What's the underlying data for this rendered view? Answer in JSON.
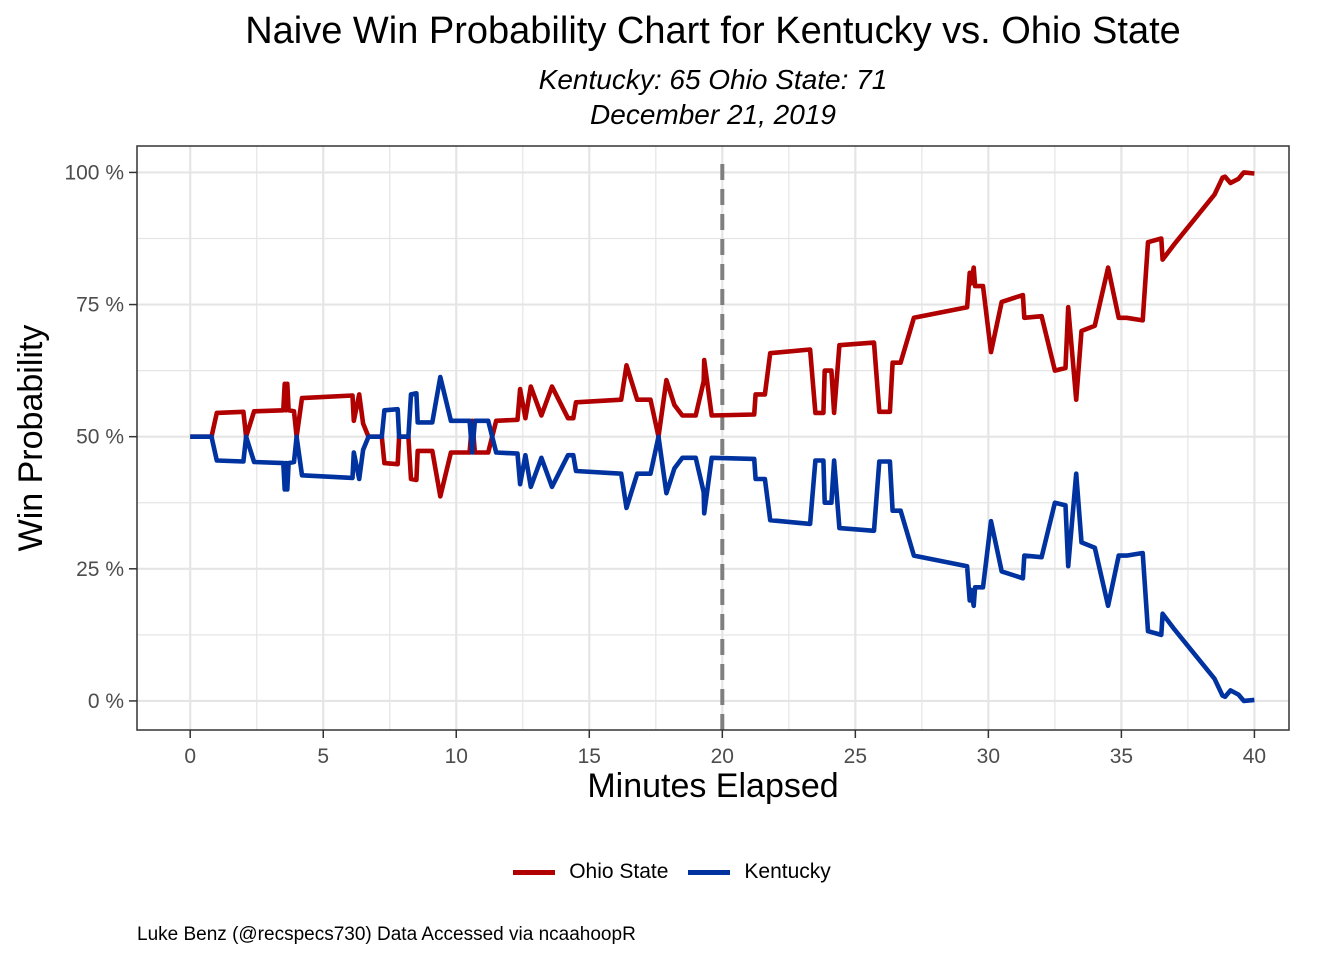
{
  "title": "Naive Win Probability Chart for Kentucky vs. Ohio State",
  "subtitle_line1": "Kentucky: 65  Ohio State: 71",
  "subtitle_line2": "December 21, 2019",
  "caption": "Luke Benz (@recspecs730) Data Accessed via ncaahoopR",
  "colors": {
    "ohio_state": "#b00000",
    "kentucky": "#0033a0",
    "halftime_line": "#7f7f7f",
    "grid": "#e5e5e5"
  },
  "chart_data": {
    "type": "line",
    "xlabel": "Minutes Elapsed",
    "ylabel": "Win Probability",
    "xlim": [
      -2,
      41.3
    ],
    "ylim": [
      -0.055,
      1.05
    ],
    "x_ticks": [
      0,
      5,
      10,
      15,
      20,
      25,
      30,
      35,
      40
    ],
    "x_tick_labels": [
      "0",
      "5",
      "10",
      "15",
      "20",
      "25",
      "30",
      "35",
      "40"
    ],
    "y_ticks": [
      0,
      0.25,
      0.5,
      0.75,
      1.0
    ],
    "y_tick_labels": [
      "0 %",
      "25 %",
      "50 %",
      "75 %",
      "100 %"
    ],
    "grid": true,
    "legend_position": "bottom",
    "reference_line": {
      "x": 20,
      "style": "dashed"
    },
    "series": [
      {
        "name": "Ohio State",
        "color": "#b00000",
        "points": [
          [
            0,
            0.5
          ],
          [
            0.8,
            0.5
          ],
          [
            1.0,
            0.545
          ],
          [
            2.0,
            0.547
          ],
          [
            2.1,
            0.5
          ],
          [
            2.4,
            0.548
          ],
          [
            3.5,
            0.55
          ],
          [
            3.55,
            0.6
          ],
          [
            3.6,
            0.55
          ],
          [
            3.65,
            0.6
          ],
          [
            3.7,
            0.55
          ],
          [
            3.9,
            0.548
          ],
          [
            4.0,
            0.5
          ],
          [
            4.2,
            0.573
          ],
          [
            6.1,
            0.578
          ],
          [
            6.15,
            0.53
          ],
          [
            6.35,
            0.58
          ],
          [
            6.5,
            0.525
          ],
          [
            6.7,
            0.5
          ],
          [
            7.2,
            0.5
          ],
          [
            7.3,
            0.45
          ],
          [
            7.8,
            0.448
          ],
          [
            7.85,
            0.5
          ],
          [
            8.2,
            0.5
          ],
          [
            8.3,
            0.42
          ],
          [
            8.5,
            0.418
          ],
          [
            8.55,
            0.473
          ],
          [
            9.1,
            0.473
          ],
          [
            9.4,
            0.387
          ],
          [
            9.8,
            0.47
          ],
          [
            10.5,
            0.47
          ],
          [
            10.6,
            0.53
          ],
          [
            10.7,
            0.47
          ],
          [
            11.2,
            0.47
          ],
          [
            11.5,
            0.53
          ],
          [
            12.3,
            0.532
          ],
          [
            12.4,
            0.59
          ],
          [
            12.6,
            0.535
          ],
          [
            12.8,
            0.595
          ],
          [
            13.2,
            0.54
          ],
          [
            13.6,
            0.595
          ],
          [
            14.2,
            0.535
          ],
          [
            14.4,
            0.535
          ],
          [
            14.5,
            0.565
          ],
          [
            16.2,
            0.57
          ],
          [
            16.4,
            0.635
          ],
          [
            16.8,
            0.57
          ],
          [
            17.3,
            0.57
          ],
          [
            17.6,
            0.5
          ],
          [
            17.9,
            0.607
          ],
          [
            18.2,
            0.56
          ],
          [
            18.5,
            0.54
          ],
          [
            19.0,
            0.54
          ],
          [
            19.3,
            0.605
          ],
          [
            19.32,
            0.645
          ],
          [
            19.6,
            0.54
          ],
          [
            21.2,
            0.542
          ],
          [
            21.25,
            0.58
          ],
          [
            21.6,
            0.58
          ],
          [
            21.8,
            0.658
          ],
          [
            23.3,
            0.665
          ],
          [
            23.5,
            0.545
          ],
          [
            23.8,
            0.545
          ],
          [
            23.85,
            0.625
          ],
          [
            24.1,
            0.625
          ],
          [
            24.2,
            0.545
          ],
          [
            24.4,
            0.673
          ],
          [
            25.7,
            0.678
          ],
          [
            25.9,
            0.547
          ],
          [
            26.3,
            0.547
          ],
          [
            26.4,
            0.64
          ],
          [
            26.7,
            0.64
          ],
          [
            27.2,
            0.725
          ],
          [
            29.2,
            0.745
          ],
          [
            29.3,
            0.81
          ],
          [
            29.35,
            0.79
          ],
          [
            29.45,
            0.82
          ],
          [
            29.5,
            0.785
          ],
          [
            29.8,
            0.785
          ],
          [
            30.1,
            0.66
          ],
          [
            30.5,
            0.755
          ],
          [
            31.3,
            0.768
          ],
          [
            31.35,
            0.725
          ],
          [
            32.0,
            0.728
          ],
          [
            32.5,
            0.625
          ],
          [
            32.9,
            0.63
          ],
          [
            33.0,
            0.745
          ],
          [
            33.3,
            0.57
          ],
          [
            33.5,
            0.7
          ],
          [
            34.0,
            0.71
          ],
          [
            34.5,
            0.82
          ],
          [
            34.9,
            0.725
          ],
          [
            35.2,
            0.725
          ],
          [
            35.8,
            0.72
          ],
          [
            36.0,
            0.868
          ],
          [
            36.5,
            0.875
          ],
          [
            36.55,
            0.835
          ],
          [
            37.0,
            0.865
          ],
          [
            38.5,
            0.958
          ],
          [
            38.8,
            0.99
          ],
          [
            38.9,
            0.992
          ],
          [
            39.1,
            0.98
          ],
          [
            39.4,
            0.988
          ],
          [
            39.6,
            1.0
          ],
          [
            40,
            0.998
          ]
        ]
      },
      {
        "name": "Kentucky",
        "color": "#0033a0",
        "points": [
          [
            0,
            0.5
          ],
          [
            0.8,
            0.5
          ],
          [
            1.0,
            0.455
          ],
          [
            2.0,
            0.453
          ],
          [
            2.1,
            0.5
          ],
          [
            2.4,
            0.452
          ],
          [
            3.5,
            0.45
          ],
          [
            3.55,
            0.4
          ],
          [
            3.6,
            0.45
          ],
          [
            3.65,
            0.4
          ],
          [
            3.7,
            0.45
          ],
          [
            3.9,
            0.452
          ],
          [
            4.0,
            0.5
          ],
          [
            4.2,
            0.427
          ],
          [
            6.1,
            0.422
          ],
          [
            6.15,
            0.47
          ],
          [
            6.35,
            0.42
          ],
          [
            6.5,
            0.475
          ],
          [
            6.7,
            0.5
          ],
          [
            7.2,
            0.5
          ],
          [
            7.3,
            0.55
          ],
          [
            7.8,
            0.552
          ],
          [
            7.85,
            0.5
          ],
          [
            8.2,
            0.5
          ],
          [
            8.3,
            0.58
          ],
          [
            8.5,
            0.582
          ],
          [
            8.55,
            0.527
          ],
          [
            9.1,
            0.527
          ],
          [
            9.4,
            0.613
          ],
          [
            9.8,
            0.53
          ],
          [
            10.5,
            0.53
          ],
          [
            10.6,
            0.47
          ],
          [
            10.7,
            0.53
          ],
          [
            11.2,
            0.53
          ],
          [
            11.5,
            0.47
          ],
          [
            12.3,
            0.468
          ],
          [
            12.4,
            0.41
          ],
          [
            12.6,
            0.465
          ],
          [
            12.8,
            0.405
          ],
          [
            13.2,
            0.46
          ],
          [
            13.6,
            0.405
          ],
          [
            14.2,
            0.465
          ],
          [
            14.4,
            0.465
          ],
          [
            14.5,
            0.435
          ],
          [
            16.2,
            0.43
          ],
          [
            16.4,
            0.365
          ],
          [
            16.8,
            0.43
          ],
          [
            17.3,
            0.43
          ],
          [
            17.6,
            0.5
          ],
          [
            17.9,
            0.393
          ],
          [
            18.2,
            0.44
          ],
          [
            18.5,
            0.46
          ],
          [
            19.0,
            0.46
          ],
          [
            19.3,
            0.395
          ],
          [
            19.32,
            0.355
          ],
          [
            19.6,
            0.46
          ],
          [
            21.2,
            0.458
          ],
          [
            21.25,
            0.42
          ],
          [
            21.6,
            0.42
          ],
          [
            21.8,
            0.342
          ],
          [
            23.3,
            0.335
          ],
          [
            23.5,
            0.455
          ],
          [
            23.8,
            0.455
          ],
          [
            23.85,
            0.375
          ],
          [
            24.1,
            0.375
          ],
          [
            24.2,
            0.455
          ],
          [
            24.4,
            0.327
          ],
          [
            25.7,
            0.322
          ],
          [
            25.9,
            0.453
          ],
          [
            26.3,
            0.453
          ],
          [
            26.4,
            0.36
          ],
          [
            26.7,
            0.36
          ],
          [
            27.2,
            0.275
          ],
          [
            29.2,
            0.255
          ],
          [
            29.3,
            0.19
          ],
          [
            29.35,
            0.21
          ],
          [
            29.45,
            0.18
          ],
          [
            29.5,
            0.215
          ],
          [
            29.8,
            0.215
          ],
          [
            30.1,
            0.34
          ],
          [
            30.5,
            0.245
          ],
          [
            31.3,
            0.232
          ],
          [
            31.35,
            0.275
          ],
          [
            32.0,
            0.272
          ],
          [
            32.5,
            0.375
          ],
          [
            32.9,
            0.37
          ],
          [
            33.0,
            0.255
          ],
          [
            33.3,
            0.43
          ],
          [
            33.5,
            0.3
          ],
          [
            34.0,
            0.29
          ],
          [
            34.5,
            0.18
          ],
          [
            34.9,
            0.275
          ],
          [
            35.2,
            0.275
          ],
          [
            35.8,
            0.28
          ],
          [
            36.0,
            0.132
          ],
          [
            36.5,
            0.125
          ],
          [
            36.55,
            0.165
          ],
          [
            37.0,
            0.135
          ],
          [
            38.5,
            0.042
          ],
          [
            38.8,
            0.01
          ],
          [
            38.9,
            0.008
          ],
          [
            39.1,
            0.02
          ],
          [
            39.4,
            0.012
          ],
          [
            39.6,
            0.0
          ],
          [
            40,
            0.002
          ]
        ]
      }
    ]
  }
}
